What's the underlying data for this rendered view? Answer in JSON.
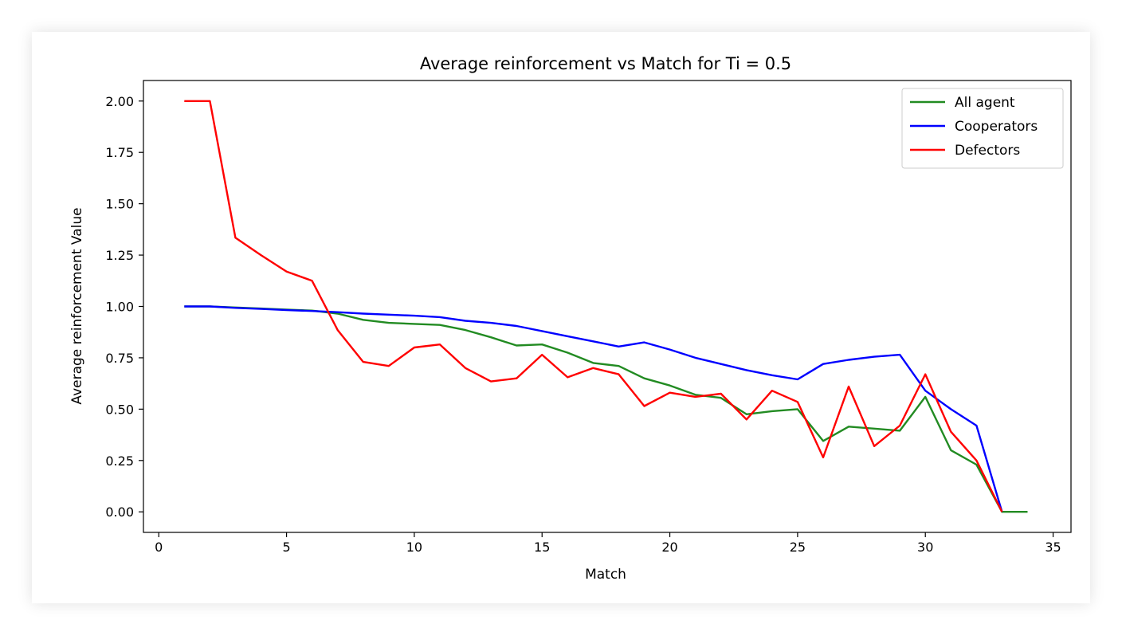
{
  "chart_data": {
    "type": "line",
    "title": "Average reinforcement vs Match for Ti = 0.5",
    "xlabel": "Match",
    "ylabel": "Average reinforcement Value",
    "xlim": [
      -0.6,
      35.7
    ],
    "ylim": [
      -0.1,
      2.1
    ],
    "xticks": [
      0,
      5,
      10,
      15,
      20,
      25,
      30,
      35
    ],
    "xtick_labels": [
      "0",
      "5",
      "10",
      "15",
      "20",
      "25",
      "30",
      "35"
    ],
    "yticks": [
      0.0,
      0.25,
      0.5,
      0.75,
      1.0,
      1.25,
      1.5,
      1.75,
      2.0
    ],
    "ytick_labels": [
      "0.00",
      "0.25",
      "0.50",
      "0.75",
      "1.00",
      "1.25",
      "1.50",
      "1.75",
      "2.00"
    ],
    "grid": false,
    "legend_position": "top-right",
    "series": [
      {
        "name": "All agent",
        "color": "#228b22",
        "x": [
          1,
          2,
          3,
          4,
          5,
          6,
          7,
          8,
          9,
          10,
          11,
          12,
          13,
          14,
          15,
          16,
          17,
          18,
          19,
          20,
          21,
          22,
          23,
          24,
          25,
          26,
          27,
          28,
          29,
          30,
          31,
          32,
          33,
          34
        ],
        "y": [
          1.0,
          1.0,
          0.995,
          0.99,
          0.985,
          0.98,
          0.965,
          0.935,
          0.92,
          0.915,
          0.91,
          0.885,
          0.85,
          0.81,
          0.815,
          0.775,
          0.725,
          0.71,
          0.65,
          0.615,
          0.57,
          0.555,
          0.475,
          0.49,
          0.5,
          0.345,
          0.415,
          0.405,
          0.395,
          0.56,
          0.3,
          0.23,
          0.0,
          0.0
        ]
      },
      {
        "name": "Cooperators",
        "color": "#0000ff",
        "x": [
          1,
          2,
          3,
          4,
          5,
          6,
          7,
          8,
          9,
          10,
          11,
          12,
          13,
          14,
          15,
          16,
          17,
          18,
          19,
          20,
          21,
          22,
          23,
          24,
          25,
          26,
          27,
          28,
          29,
          30,
          31,
          32,
          33
        ],
        "y": [
          1.0,
          1.0,
          0.993,
          0.988,
          0.982,
          0.978,
          0.972,
          0.965,
          0.96,
          0.955,
          0.948,
          0.93,
          0.92,
          0.905,
          0.88,
          0.855,
          0.83,
          0.805,
          0.825,
          0.79,
          0.75,
          0.72,
          0.69,
          0.665,
          0.645,
          0.72,
          0.74,
          0.755,
          0.765,
          0.59,
          0.5,
          0.42,
          0.0
        ]
      },
      {
        "name": "Defectors",
        "color": "#ff0000",
        "x": [
          1,
          2,
          3,
          4,
          5,
          6,
          7,
          8,
          9,
          10,
          11,
          12,
          13,
          14,
          15,
          16,
          17,
          18,
          19,
          20,
          21,
          22,
          23,
          24,
          25,
          26,
          27,
          28,
          29,
          30,
          31,
          32,
          33
        ],
        "y": [
          2.0,
          2.0,
          1.335,
          1.25,
          1.17,
          1.125,
          0.885,
          0.73,
          0.71,
          0.8,
          0.815,
          0.7,
          0.635,
          0.65,
          0.765,
          0.655,
          0.7,
          0.67,
          0.515,
          0.58,
          0.56,
          0.575,
          0.45,
          0.59,
          0.535,
          0.265,
          0.61,
          0.32,
          0.42,
          0.67,
          0.39,
          0.25,
          0.0
        ]
      }
    ]
  }
}
